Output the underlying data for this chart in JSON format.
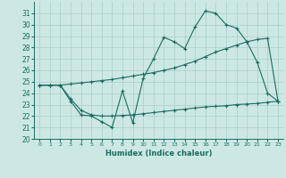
{
  "xlabel": "Humidex (Indice chaleur)",
  "ylabel": "",
  "xlim": [
    -0.5,
    23.5
  ],
  "ylim": [
    20,
    32
  ],
  "yticks": [
    20,
    21,
    22,
    23,
    24,
    25,
    26,
    27,
    28,
    29,
    30,
    31
  ],
  "xticks": [
    0,
    1,
    2,
    3,
    4,
    5,
    6,
    7,
    8,
    9,
    10,
    11,
    12,
    13,
    14,
    15,
    16,
    17,
    18,
    19,
    20,
    21,
    22,
    23
  ],
  "bg_color": "#cce8e4",
  "grid_color": "#aaccca",
  "line_color": "#1a6b60",
  "line1_x": [
    0,
    1,
    2,
    3,
    4,
    5,
    6,
    7,
    8,
    9,
    10,
    11,
    12,
    13,
    14,
    15,
    16,
    17,
    18,
    19,
    20,
    21,
    22,
    23
  ],
  "line1_y": [
    24.7,
    24.7,
    24.7,
    23.3,
    22.1,
    22.0,
    21.5,
    21.0,
    24.2,
    21.4,
    25.3,
    27.0,
    28.9,
    28.5,
    27.9,
    29.8,
    31.2,
    31.0,
    30.0,
    29.7,
    28.5,
    26.7,
    24.0,
    23.3
  ],
  "line2_x": [
    0,
    1,
    2,
    3,
    4,
    5,
    6,
    7,
    8,
    9,
    10,
    11,
    12,
    13,
    14,
    15,
    16,
    17,
    18,
    19,
    20,
    21,
    22,
    23
  ],
  "line2_y": [
    24.7,
    24.7,
    24.7,
    24.8,
    24.9,
    25.0,
    25.1,
    25.2,
    25.35,
    25.5,
    25.65,
    25.8,
    26.0,
    26.2,
    26.5,
    26.8,
    27.2,
    27.6,
    27.9,
    28.2,
    28.5,
    28.7,
    28.8,
    23.3
  ],
  "line3_x": [
    0,
    1,
    2,
    3,
    4,
    5,
    6,
    7,
    8,
    9,
    10,
    11,
    12,
    13,
    14,
    15,
    16,
    17,
    18,
    19,
    20,
    21,
    22,
    23
  ],
  "line3_y": [
    24.7,
    24.7,
    24.7,
    23.5,
    22.5,
    22.1,
    22.0,
    22.0,
    22.05,
    22.1,
    22.2,
    22.3,
    22.4,
    22.5,
    22.6,
    22.7,
    22.8,
    22.85,
    22.9,
    23.0,
    23.05,
    23.1,
    23.2,
    23.3
  ]
}
